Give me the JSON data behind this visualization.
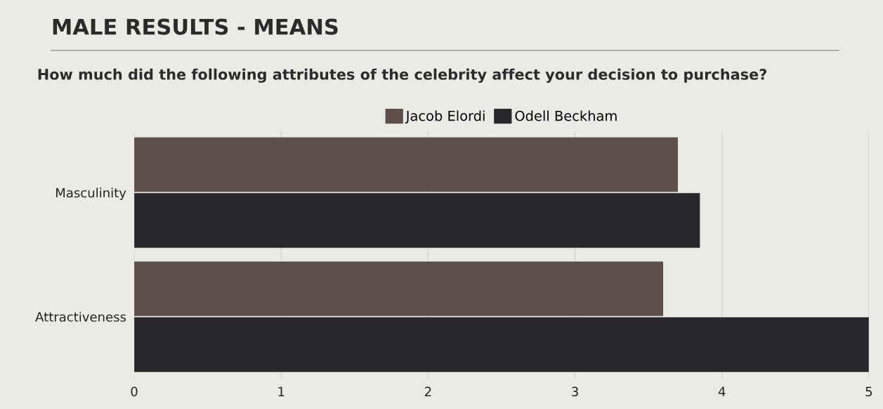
{
  "chart_data": {
    "type": "bar",
    "orientation": "horizontal",
    "title": "MALE RESULTS - MEANS",
    "subtitle": "How much did the following attributes of the celebrity affect your decision to purchase?",
    "categories": [
      "Masculinity",
      "Attractiveness"
    ],
    "series": [
      {
        "name": "Jacob Elordi",
        "color": "#5e4f4a",
        "values": [
          3.7,
          3.6
        ]
      },
      {
        "name": "Odell Beckham",
        "color": "#28272c",
        "values": [
          3.85,
          5.0
        ]
      }
    ],
    "xlim": [
      0,
      5
    ],
    "xticks": [
      0,
      1,
      2,
      3,
      4,
      5
    ],
    "grid": "x",
    "legend": "top"
  }
}
